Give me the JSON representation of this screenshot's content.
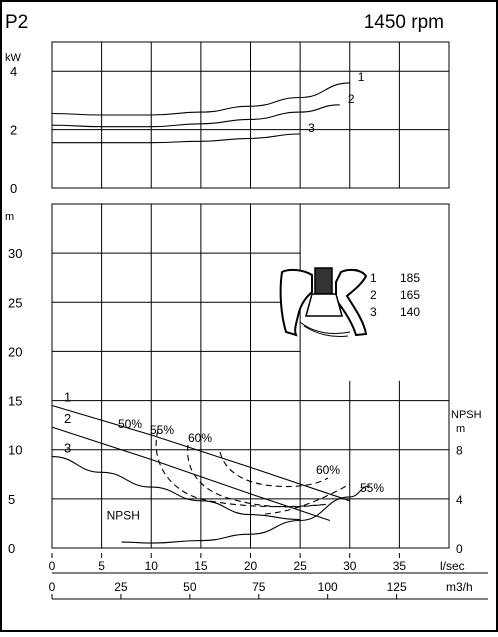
{
  "header": {
    "title": "P2",
    "speed": "1450 rpm"
  },
  "chart_data": [
    {
      "type": "line",
      "panel": "power",
      "ylabel": "kW",
      "ylim": [
        0,
        5
      ],
      "yticks": [
        "0",
        "2",
        "4"
      ],
      "xlim": [
        0,
        40
      ],
      "series": [
        {
          "name": "1",
          "x": [
            0,
            5,
            10,
            15,
            20,
            25,
            30
          ],
          "y": [
            2.55,
            2.5,
            2.5,
            2.6,
            2.8,
            3.1,
            3.6
          ]
        },
        {
          "name": "2",
          "x": [
            0,
            5,
            10,
            15,
            20,
            25,
            29
          ],
          "y": [
            2.15,
            2.1,
            2.1,
            2.2,
            2.35,
            2.6,
            2.85
          ]
        },
        {
          "name": "3",
          "x": [
            0,
            5,
            10,
            15,
            20,
            25
          ],
          "y": [
            1.55,
            1.55,
            1.55,
            1.6,
            1.7,
            1.85
          ]
        }
      ]
    },
    {
      "type": "line",
      "panel": "head",
      "ylabel": "m",
      "ylim": [
        0,
        35
      ],
      "yticks": [
        "0",
        "5",
        "10",
        "15",
        "20",
        "25",
        "30"
      ],
      "right_ylabel": "NPSH",
      "right_unit": "m",
      "right_yticks": [
        "0",
        "4",
        "8"
      ],
      "xlabel": "l/sec",
      "xticks": [
        "0",
        "5",
        "10",
        "15",
        "20",
        "25",
        "30",
        "35"
      ],
      "xlim": [
        0,
        40
      ],
      "x2label": "m3/h",
      "x2ticks": [
        "0",
        "25",
        "50",
        "75",
        "100",
        "125"
      ],
      "series": [
        {
          "name": "1",
          "x": [
            0,
            10,
            20,
            30
          ],
          "y": [
            14.5,
            11.5,
            8.2,
            4.8
          ]
        },
        {
          "name": "2",
          "x": [
            0,
            10,
            20,
            28
          ],
          "y": [
            12.3,
            9.0,
            5.5,
            2.8
          ]
        },
        {
          "name": "3",
          "x": [
            0,
            5,
            10,
            15,
            20,
            25
          ],
          "y": [
            9.3,
            7.7,
            6.2,
            4.8,
            3.4,
            2.9
          ]
        },
        {
          "name": "NPSH",
          "x": [
            7,
            10,
            15,
            20,
            25,
            30,
            32
          ],
          "y": [
            0.6,
            0.5,
            0.75,
            1.4,
            2.8,
            5.2,
            6.3
          ]
        }
      ],
      "efficiency_labels": [
        "50%",
        "55%",
        "60%",
        "60%",
        "55%"
      ],
      "impeller_table": [
        {
          "curve": "1",
          "diameter": "185"
        },
        {
          "curve": "2",
          "diameter": "165"
        },
        {
          "curve": "3",
          "diameter": "140"
        }
      ]
    }
  ]
}
